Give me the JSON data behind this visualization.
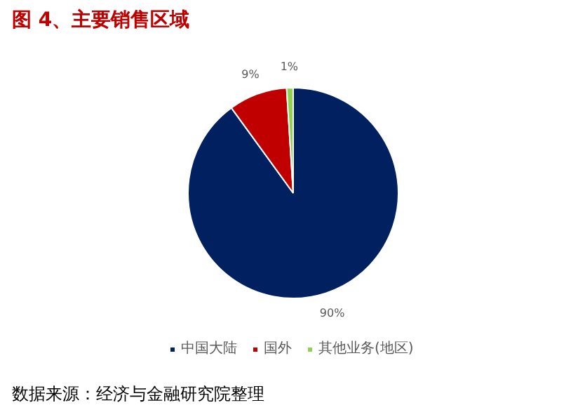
{
  "chart_data": {
    "type": "pie",
    "title": "图 4、主要销售区域",
    "categories": [
      "中国大陆",
      "国外",
      "其他业务(地区)"
    ],
    "values": [
      90,
      9,
      1
    ],
    "colors": [
      "#002060",
      "#c00000",
      "#92d050"
    ],
    "value_labels": [
      "90%",
      "9%",
      "1%"
    ],
    "legend": "bottom",
    "annotations": [
      "数据来源：经济与金融研究院整理"
    ]
  }
}
